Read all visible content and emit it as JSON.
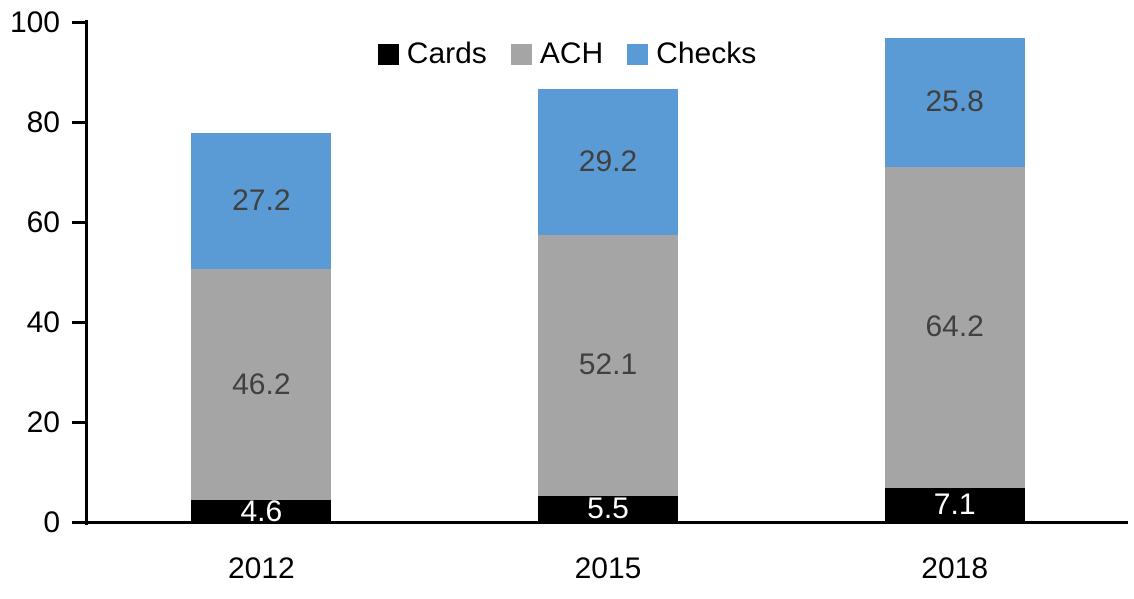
{
  "chart_data": {
    "type": "bar",
    "stacked": true,
    "title": "",
    "xlabel": "",
    "ylabel": "",
    "categories": [
      "2012",
      "2015",
      "2018"
    ],
    "series": [
      {
        "name": "Cards",
        "color": "#000000",
        "label_color": "#ffffff",
        "values": [
          4.6,
          5.5,
          7.1
        ]
      },
      {
        "name": "ACH",
        "color": "#a5a5a5",
        "label_color": "#404040",
        "values": [
          46.2,
          52.1,
          64.2
        ]
      },
      {
        "name": "Checks",
        "color": "#5b9bd5",
        "label_color": "#404040",
        "values": [
          27.2,
          29.2,
          25.8
        ]
      }
    ],
    "data_labels_shown": true,
    "ylim": [
      0,
      100
    ],
    "yticks": [
      "0",
      "20",
      "40",
      "60",
      "80",
      "100"
    ],
    "grid": "off",
    "legend_position": "top-center",
    "legend_entries": [
      "Cards",
      "ACH",
      "Checks"
    ],
    "axis_color": "#000000",
    "background_color": "#ffffff"
  }
}
